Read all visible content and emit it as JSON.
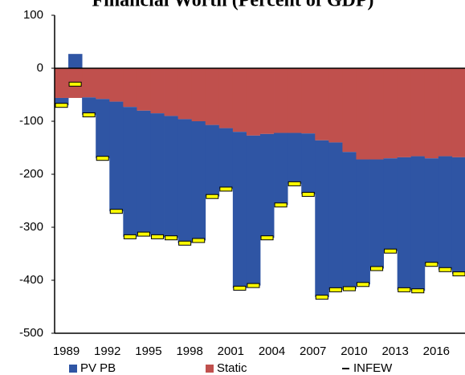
{
  "chart_data": {
    "type": "stacked-bar-with-markers",
    "title": "Financial Worth (Percent of GDP)",
    "categories": [
      "1989",
      null,
      null,
      "1992",
      null,
      null,
      "1995",
      null,
      null,
      "1998",
      null,
      null,
      "2001",
      null,
      null,
      "2004",
      null,
      null,
      "2007",
      null,
      null,
      "2010",
      null,
      null,
      "2013",
      null,
      null,
      "2016",
      null,
      null
    ],
    "series": [
      {
        "name": "PV PB",
        "color": "#2f55a4",
        "kind": "bar",
        "values": [
          -14,
          27,
          -33,
          -112,
          -207,
          -245,
          -233,
          -233,
          -230,
          -234,
          -225,
          -135,
          -115,
          -295,
          -283,
          -196,
          -136,
          -96,
          -115,
          -296,
          -278,
          -258,
          -236,
          -206,
          -175,
          -250,
          -254,
          -200,
          -214,
          -220
        ]
      },
      {
        "name": "Static",
        "color": "#c0504d",
        "kind": "bar",
        "values": [
          -56,
          -56,
          -55,
          -58,
          -63,
          -73,
          -80,
          -85,
          -90,
          -96,
          -100,
          -107,
          -113,
          -120,
          -127,
          -124,
          -122,
          -122,
          -123,
          -136,
          -140,
          -158,
          -172,
          -172,
          -170,
          -168,
          -166,
          -170,
          -166,
          -168
        ]
      },
      {
        "name": "INFEW",
        "color": "#ffff00",
        "kind": "marker",
        "values": [
          -70,
          -30,
          -88,
          -170,
          -270,
          -318,
          -313,
          -318,
          -320,
          -330,
          -325,
          -242,
          -228,
          -415,
          -410,
          -320,
          -258,
          -218,
          -238,
          -432,
          -418,
          -416,
          -408,
          -378,
          -345,
          -418,
          -420,
          -370,
          -380,
          -388
        ]
      }
    ],
    "ylim": [
      -500,
      100
    ],
    "yticks": [
      -500,
      -400,
      -300,
      -200,
      -100,
      0,
      100
    ],
    "grid": false
  }
}
